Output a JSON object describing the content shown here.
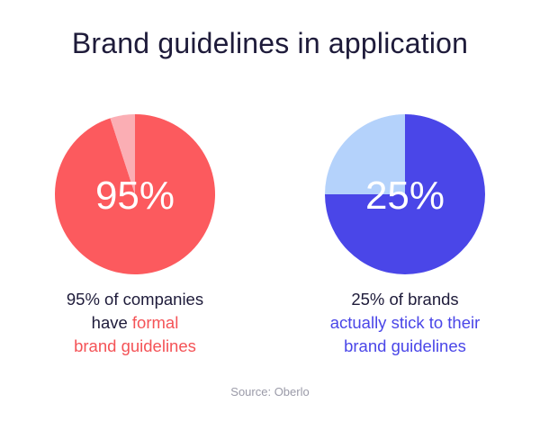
{
  "title": "Brand guidelines in application",
  "source": "Source: Oberlo",
  "chart_data": [
    {
      "type": "pie",
      "center_label": "95%",
      "slices": [
        {
          "value": 95,
          "color": "#fc5a5e"
        },
        {
          "value": 5,
          "color": "#fbaeb4"
        }
      ],
      "caption": {
        "line1": "95% of companies",
        "line2_plain": "have ",
        "line2_highlight": "formal",
        "line3_highlight": "brand guidelines"
      },
      "highlight_color": "#f45357"
    },
    {
      "type": "pie",
      "center_label": "25%",
      "slices": [
        {
          "value": 75,
          "color": "#4a46e8"
        },
        {
          "value": 25,
          "color": "#b4d2fb"
        }
      ],
      "caption": {
        "line1": "25% of brands",
        "line2_highlight": "actually stick to their",
        "line3_highlight": "brand guidelines"
      },
      "highlight_color": "#4a46e8"
    }
  ]
}
